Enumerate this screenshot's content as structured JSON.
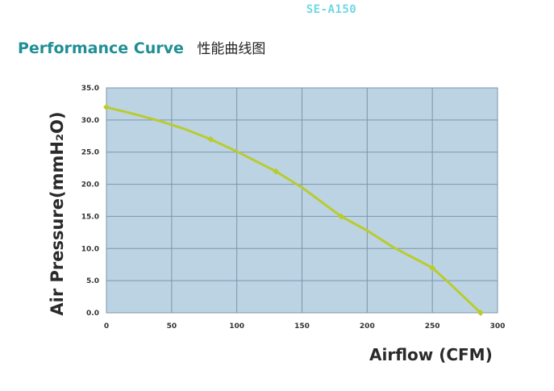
{
  "header": {
    "model": "SE-A150",
    "title_en": "Performance Curve",
    "title_cn": "性能曲线图"
  },
  "colors": {
    "model": "#6fd8e4",
    "title": "#1f8f95",
    "plot_background": "#bcd3e4",
    "grid": "#7e95aa",
    "curve": "#b8cc2e"
  },
  "chart_data": {
    "type": "line",
    "title": "",
    "xlabel": "Airflow (CFM)",
    "ylabel": "Air Pressure(mmH₂O)",
    "xlim": [
      0,
      300
    ],
    "ylim": [
      0,
      35
    ],
    "x_ticks": [
      "0",
      "50",
      "100",
      "150",
      "200",
      "250",
      "300"
    ],
    "y_ticks": [
      "0.0",
      "5.0",
      "10.0",
      "15.0",
      "20.0",
      "25.0",
      "30.0",
      "35.0"
    ],
    "grid": true,
    "series": [
      {
        "x": [
          0,
          20,
          40,
          60,
          80,
          100,
          130,
          150,
          180,
          200,
          220,
          250,
          262,
          287
        ],
        "y": [
          32.0,
          31.0,
          29.9,
          28.6,
          27.0,
          25.1,
          22.0,
          19.5,
          15.0,
          12.8,
          10.2,
          7.0,
          4.8,
          0.0
        ],
        "markers_x": [
          0,
          80,
          130,
          180,
          250,
          287
        ],
        "markers_y": [
          32.0,
          27.0,
          22.0,
          15.0,
          7.0,
          0.0
        ]
      }
    ]
  }
}
